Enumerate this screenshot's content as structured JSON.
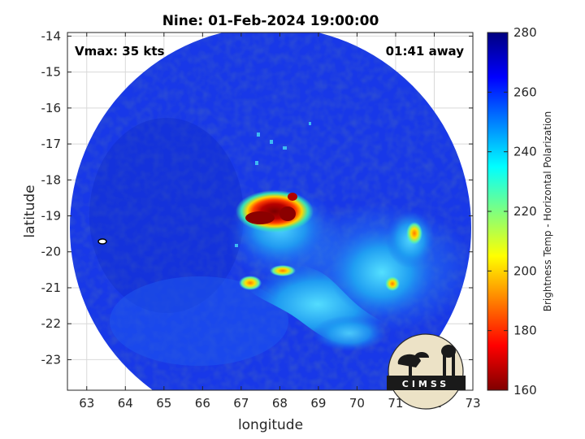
{
  "title": "Nine: 01-Feb-2024 19:00:00",
  "annotations": {
    "vmax": "Vmax: 35 kts",
    "eta": "01:41 away"
  },
  "axes": {
    "xlabel": "longitude",
    "ylabel": "latitude",
    "xlim": [
      62.5,
      73
    ],
    "ylim": [
      -23.85,
      -13.9
    ],
    "xticks": [
      "63",
      "64",
      "65",
      "66",
      "67",
      "68",
      "69",
      "70",
      "71",
      "72",
      "73"
    ],
    "yticks": [
      "-14",
      "-15",
      "-16",
      "-17",
      "-18",
      "-19",
      "-20",
      "-21",
      "-22",
      "-23"
    ],
    "grid": true
  },
  "colorbar": {
    "label": "Brightness Temp - Horizontal Polarization",
    "min": 160,
    "max": 280,
    "ticks": [
      "280",
      "260",
      "240",
      "220",
      "200",
      "180",
      "160"
    ],
    "colormap": "jet-reversed"
  },
  "logo": {
    "text": "CIMSS"
  },
  "colors": {
    "background_swath": "#1638e6",
    "swath_dark": "#0b22b8",
    "warm_cyan": "#2ec3f0",
    "cold_core": "#8b0a0a"
  },
  "chart_data": {
    "type": "heatmap",
    "title": "Nine: 01-Feb-2024 19:00:00",
    "xlabel": "longitude",
    "ylabel": "latitude",
    "xlim": [
      62.5,
      73
    ],
    "ylim": [
      -23.85,
      -13.9
    ],
    "value_range": [
      160,
      280
    ],
    "colorbar_label": "Brightness Temp - Horizontal Polarization",
    "features": [
      {
        "feature": "swath background",
        "approx_value": 265
      },
      {
        "feature": "coldest convective core",
        "lon": 67.9,
        "lat": -19.0,
        "approx_value": 165
      },
      {
        "feature": "cold spot",
        "lon": 71.5,
        "lat": -19.5,
        "approx_value": 180
      },
      {
        "feature": "cold spot",
        "lon": 67.1,
        "lat": -20.9,
        "approx_value": 185
      },
      {
        "feature": "cold spot",
        "lon": 68.3,
        "lat": -20.6,
        "approx_value": 190
      },
      {
        "feature": "cold spot",
        "lon": 71.0,
        "lat": -20.9,
        "approx_value": 200
      }
    ]
  }
}
